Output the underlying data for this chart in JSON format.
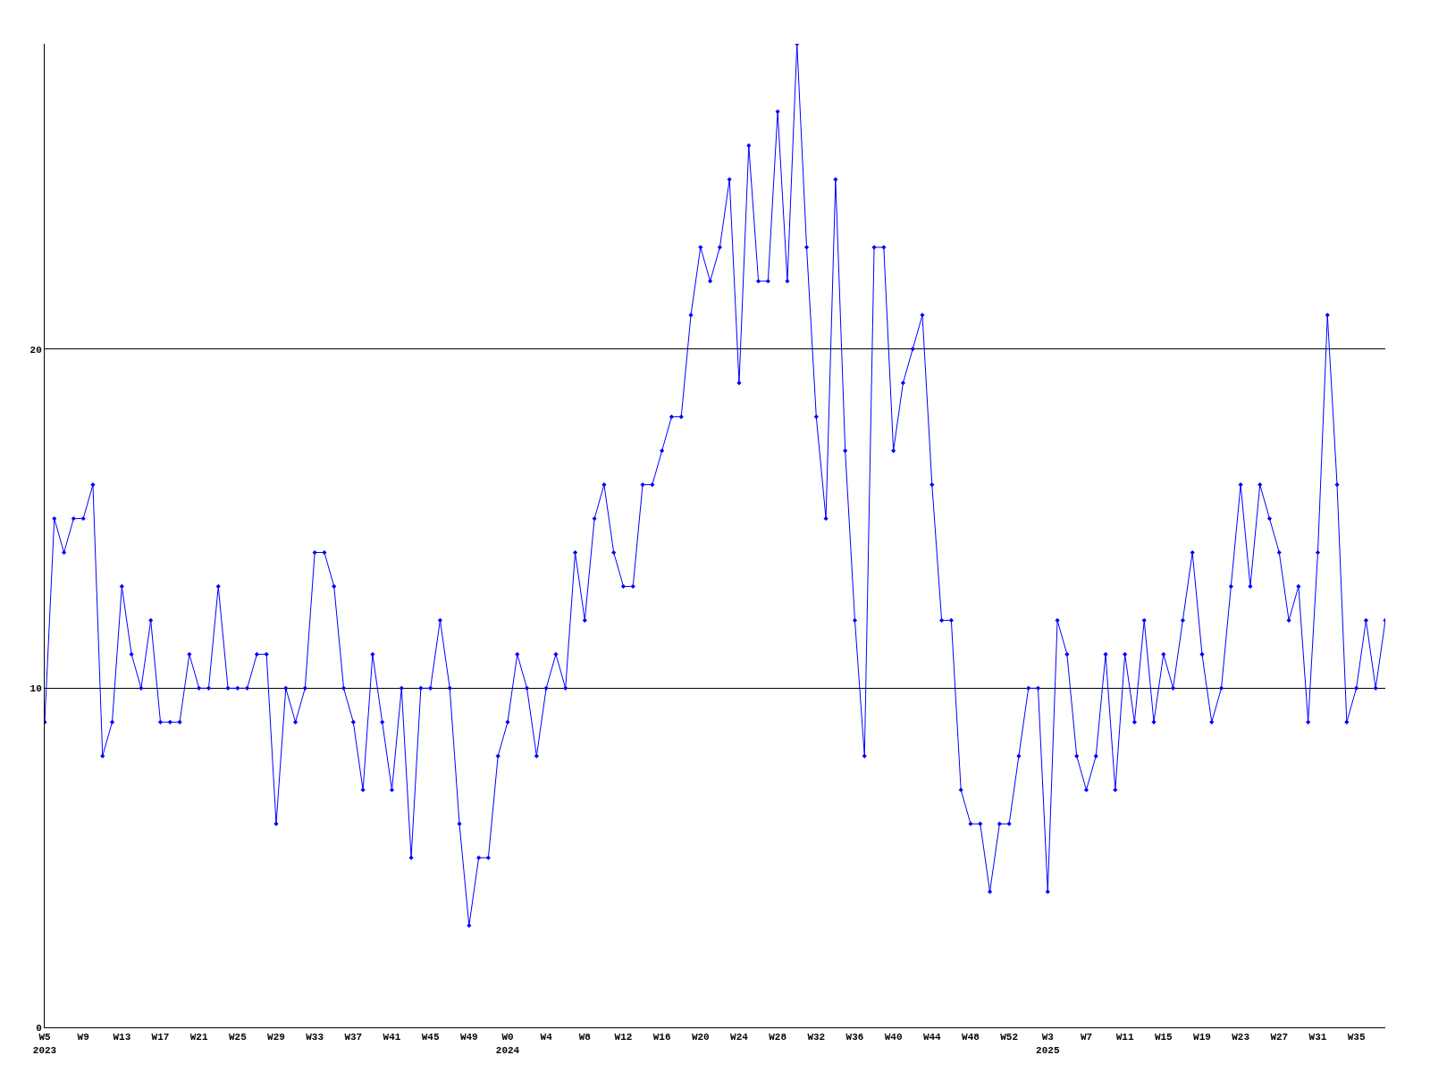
{
  "chart_data": {
    "type": "line",
    "categories": [
      "W5\n2023",
      null,
      null,
      null,
      "W9",
      null,
      null,
      null,
      "W13",
      null,
      null,
      null,
      "W17",
      null,
      null,
      null,
      "W21",
      null,
      null,
      null,
      "W25",
      null,
      null,
      null,
      "W29",
      null,
      null,
      null,
      "W33",
      null,
      null,
      null,
      "W37",
      null,
      null,
      null,
      "W41",
      null,
      null,
      null,
      "W45",
      null,
      null,
      null,
      "W49",
      null,
      null,
      null,
      "W0\n2024",
      null,
      null,
      null,
      "W4",
      null,
      null,
      null,
      "W8",
      null,
      null,
      null,
      "W12",
      null,
      null,
      null,
      "W16",
      null,
      null,
      null,
      "W20",
      null,
      null,
      null,
      "W24",
      null,
      null,
      null,
      "W28",
      null,
      null,
      null,
      "W32",
      null,
      null,
      null,
      "W36",
      null,
      null,
      null,
      "W40",
      null,
      null,
      null,
      "W44",
      null,
      null,
      null,
      "W48",
      null,
      null,
      null,
      "W52",
      null,
      null,
      null,
      "W3\n2025",
      null,
      null,
      null,
      "W7",
      null,
      null,
      null,
      "W11",
      null,
      null,
      null,
      "W15",
      null,
      null,
      null,
      "W19",
      null,
      null,
      null,
      "W23",
      null,
      null,
      null,
      "W27",
      null,
      null,
      null,
      "W31",
      null,
      null,
      null,
      "W35",
      null,
      null,
      null
    ],
    "series": [
      {
        "color": "#0000ff",
        "values": [
          9,
          15,
          14,
          15,
          15,
          16,
          8,
          9,
          13,
          11,
          10,
          12,
          9,
          9,
          9,
          11,
          10,
          10,
          13,
          10,
          10,
          10,
          11,
          11,
          6,
          10,
          9,
          10,
          14,
          14,
          13,
          10,
          9,
          7,
          11,
          9,
          7,
          10,
          5,
          10,
          10,
          12,
          10,
          6,
          3,
          5,
          5,
          8,
          9,
          11,
          10,
          8,
          10,
          11,
          10,
          14,
          12,
          15,
          16,
          14,
          13,
          13,
          16,
          16,
          17,
          18,
          18,
          21,
          23,
          22,
          23,
          25,
          19,
          26,
          22,
          22,
          27,
          22,
          29,
          23,
          18,
          15,
          25,
          17,
          12,
          8,
          23,
          23,
          17,
          19,
          20,
          21,
          16,
          12,
          12,
          7,
          6,
          6,
          4,
          6,
          6,
          8,
          10,
          10,
          4,
          12,
          11,
          8,
          7,
          8,
          11,
          7,
          11,
          9,
          12,
          9,
          11,
          10,
          12,
          14,
          11,
          9,
          10,
          13,
          16,
          13,
          16,
          15,
          14,
          12,
          13,
          9,
          14,
          21,
          16,
          9,
          10,
          12,
          10,
          12
        ]
      }
    ],
    "ylim": [
      0,
      29
    ],
    "yticks": [
      0,
      10,
      20
    ],
    "grid": "y",
    "marker": "diamond",
    "line_style": "solid"
  }
}
